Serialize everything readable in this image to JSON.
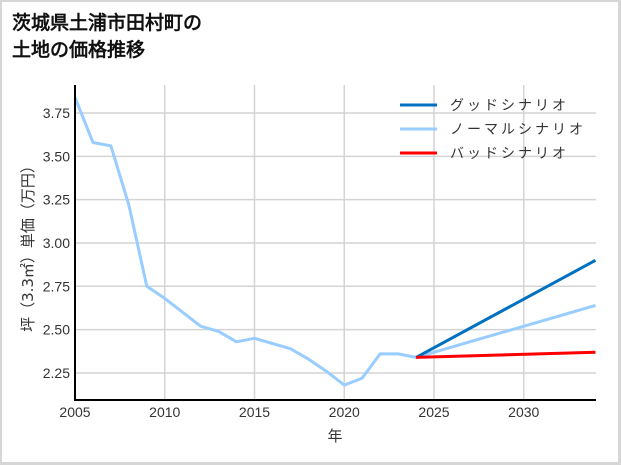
{
  "title_line1": "茨城県土浦市田村町の",
  "title_line2": "土地の価格推移",
  "chart_data": {
    "type": "line",
    "title": "茨城県土浦市田村町の土地の価格推移",
    "xlabel": "年",
    "ylabel": "坪（3.3㎡）単価（万円）",
    "xlim": [
      2005,
      2034
    ],
    "ylim": [
      2.1,
      3.92
    ],
    "xticks": [
      2005,
      2010,
      2015,
      2020,
      2025,
      2030
    ],
    "yticks": [
      2.25,
      2.5,
      2.75,
      3.0,
      3.25,
      3.5,
      3.75
    ],
    "ytick_labels": [
      "2.25",
      "2.50",
      "2.75",
      "3.00",
      "3.25",
      "3.50",
      "3.75"
    ],
    "grid": true,
    "legend_position": "upper right",
    "series": [
      {
        "name": "グッドシナリオ",
        "color": "#0070C0",
        "x": [
          2024,
          2034
        ],
        "values": [
          2.34,
          2.9
        ]
      },
      {
        "name": "ノーマルシナリオ",
        "color": "#99CCFF",
        "x": [
          2005,
          2006,
          2007,
          2008,
          2009,
          2010,
          2011,
          2012,
          2013,
          2014,
          2015,
          2016,
          2017,
          2018,
          2019,
          2020,
          2021,
          2022,
          2023,
          2024,
          2034
        ],
        "values": [
          3.84,
          3.58,
          3.56,
          3.22,
          2.75,
          2.68,
          2.6,
          2.52,
          2.49,
          2.43,
          2.45,
          2.42,
          2.39,
          2.33,
          2.26,
          2.18,
          2.22,
          2.36,
          2.36,
          2.34,
          2.64
        ]
      },
      {
        "name": "バッドシナリオ",
        "color": "#FF0000",
        "x": [
          2024,
          2034
        ],
        "values": [
          2.34,
          2.37
        ]
      }
    ]
  }
}
